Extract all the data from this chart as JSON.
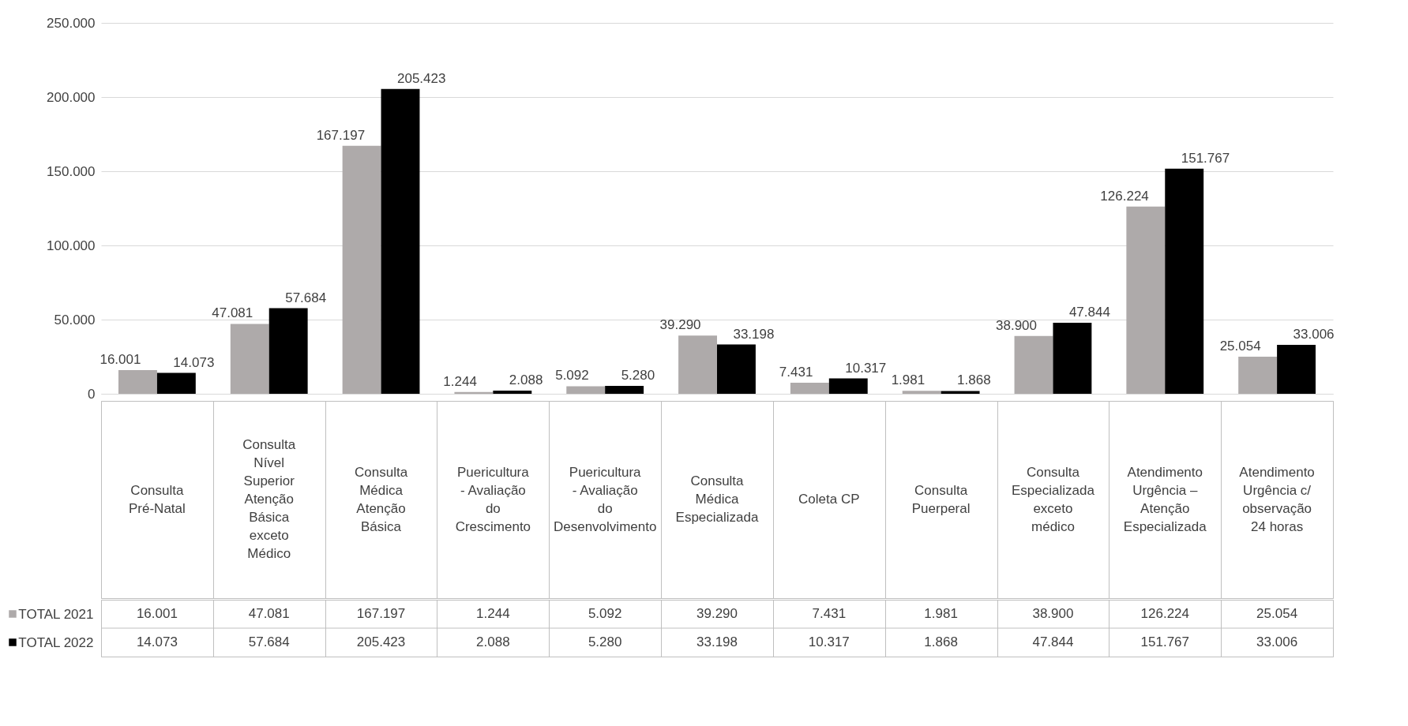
{
  "chart_data": {
    "type": "bar",
    "categories": [
      "Consulta Pré-Natal",
      "Consulta Nível Superior Atenção Básica exceto Médico",
      "Consulta Médica Atenção Básica",
      "Puericultura - Avaliação do Crescimento",
      "Puericultura - Avaliação do Desenvolvimento",
      "Consulta Médica Especializada",
      "Coleta CP",
      "Consulta Puerperal",
      "Consulta Especializada exceto médico",
      "Atendimento Urgência – Atenção Especializada",
      "Atendimento Urgência c/ observação 24 horas"
    ],
    "series": [
      {
        "name": "TOTAL  2021",
        "color": "#aeaaaa",
        "values": [
          16001,
          47081,
          167197,
          1244,
          5092,
          39290,
          7431,
          1981,
          38900,
          126224,
          25054
        ],
        "value_labels": [
          "16.001",
          "47.081",
          "167.197",
          "1.244",
          "5.092",
          "39.290",
          "7.431",
          "1.981",
          "38.900",
          "126.224",
          "25.054"
        ]
      },
      {
        "name": "TOTAL  2022",
        "color": "#000000",
        "values": [
          14073,
          57684,
          205423,
          2088,
          5280,
          33198,
          10317,
          1868,
          47844,
          151767,
          33006
        ],
        "value_labels": [
          "14.073",
          "57.684",
          "205.423",
          "2.088",
          "5.280",
          "33.198",
          "10.317",
          "1.868",
          "47.844",
          "151.767",
          "33.006"
        ]
      }
    ],
    "ylim": [
      0,
      250000
    ],
    "yticks": [
      {
        "value": 0,
        "label": "0"
      },
      {
        "value": 50000,
        "label": "50.000"
      },
      {
        "value": 100000,
        "label": "100.000"
      },
      {
        "value": 150000,
        "label": "150.000"
      },
      {
        "value": 200000,
        "label": "200.000"
      },
      {
        "value": 250000,
        "label": "250.000"
      }
    ],
    "grid": "y",
    "legend": "bottom left"
  }
}
